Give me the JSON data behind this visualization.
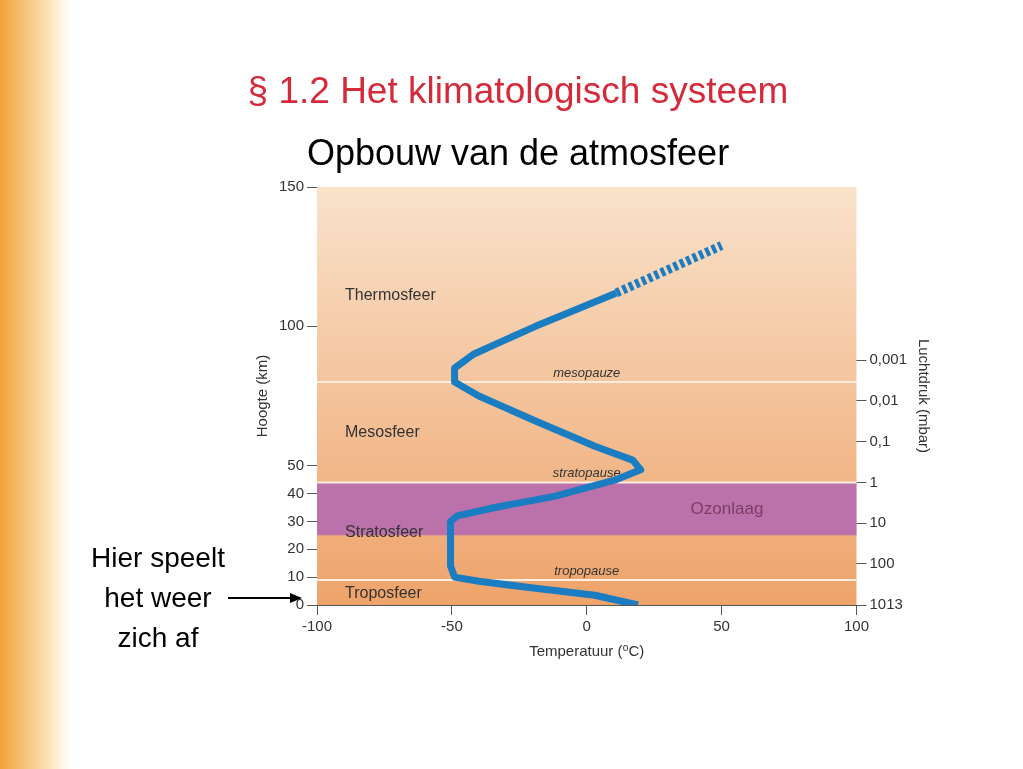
{
  "chart_data": {
    "type": "line",
    "title": "§ 1.2 Het klimatologisch systeem",
    "subtitle": "Opbouw van de atmosfeer",
    "xlabel": "Temperatuur (⁰C)",
    "ylabel": "Hoogte (km)",
    "y2label": "Luchtdruk (mbar)",
    "xlim": [
      -100,
      100
    ],
    "xticks": [
      -100,
      -50,
      0,
      50,
      100
    ],
    "ylim": [
      0,
      150
    ],
    "yticks": [
      0,
      10,
      20,
      30,
      40,
      50,
      100,
      150
    ],
    "log": "y2",
    "y2lim": [
      1013,
      5.7e-08
    ],
    "y2ticks": [
      1013,
      100,
      10,
      1,
      {
        "value": 0.1,
        "label": "0,1"
      },
      {
        "value": 0.01,
        "label": "0,01"
      },
      {
        "value": 0.001,
        "label": "0,001"
      }
    ],
    "series": [
      {
        "color": "#1a7cc1",
        "line_style": "solid",
        "x": [
          19,
          3,
          -19,
          -40,
          -49,
          -50.5,
          -50.5,
          -48,
          -34,
          -12,
          11,
          20,
          17,
          3,
          -19,
          -40,
          -49,
          -49,
          -42,
          -19,
          11
        ],
        "values": [
          0,
          3.5,
          6,
          8.5,
          10,
          14,
          30,
          32,
          35,
          39,
          45,
          48.5,
          52,
          57,
          66,
          75,
          80,
          85,
          90,
          100,
          112
        ]
      },
      {
        "color": "#1a7cc1",
        "line_style": "dashed",
        "x": [
          11,
          50
        ],
        "values": [
          112,
          129
        ]
      }
    ],
    "bands": [
      {
        "axis": "y",
        "from": 25,
        "to": 44,
        "label": "Ozonlaag",
        "color": "#bb72aa"
      }
    ],
    "ref_lines": [
      {
        "axis": "y",
        "value": 80,
        "label": "mesopauze",
        "color": "#fbeee0"
      },
      {
        "axis": "y",
        "value": 44,
        "label": "stratopause",
        "color": "#fbeee0"
      },
      {
        "axis": "y",
        "value": 9,
        "label": "tropopause",
        "color": "#fbeee0"
      }
    ],
    "annotations": [
      "Thermosfeer",
      "Mesosfeer",
      "Stratosfeer",
      "Troposfeer",
      "Hier speelt het weer zich af"
    ],
    "grid": false,
    "legend": false
  }
}
